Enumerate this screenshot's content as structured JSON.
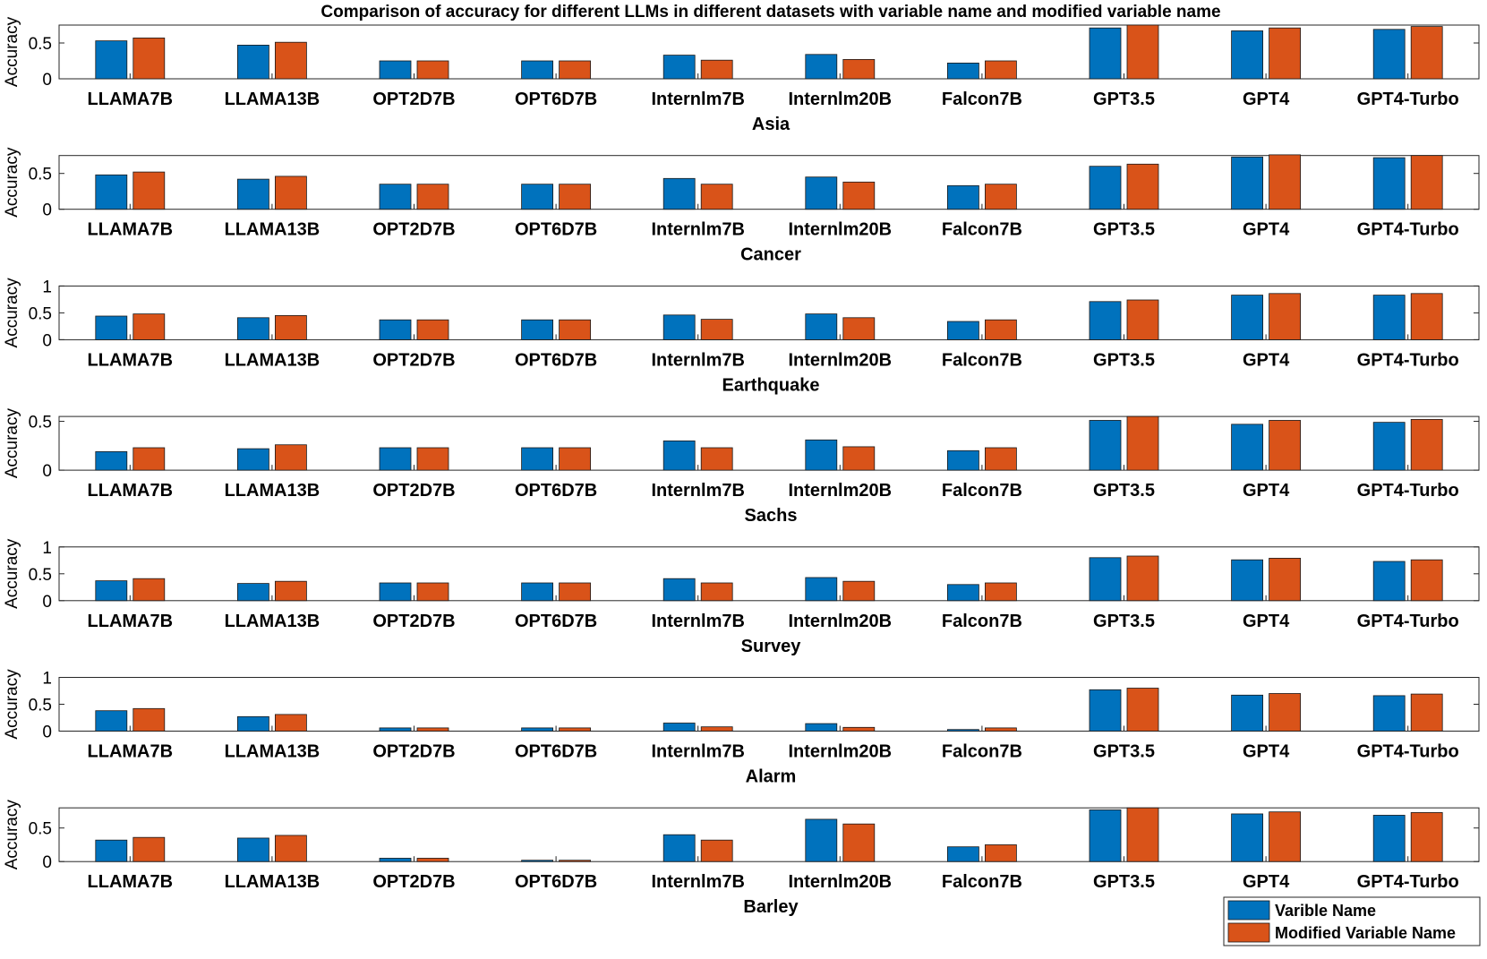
{
  "chart_data": {
    "type": "bar",
    "title": "Comparison of accuracy for different LLMs in different datasets with variable name and modified variable name",
    "ylabel": "Accuracy",
    "categories": [
      "LLAMA7B",
      "LLAMA13B",
      "OPT2D7B",
      "OPT6D7B",
      "Internlm7B",
      "Internlm20B",
      "Falcon7B",
      "GPT3.5",
      "GPT4",
      "GPT4-Turbo"
    ],
    "legend": {
      "placement": "bottom-right",
      "entries": [
        "Varible Name",
        "Modified Variable Name"
      ]
    },
    "colors": {
      "series1": "#0072BD",
      "series2": "#D95319",
      "axis": "#262626",
      "text": "#000000"
    },
    "panels": [
      {
        "xlabel": "Asia",
        "ylim": [
          0,
          0.75
        ],
        "yticks": [
          0,
          0.5
        ],
        "ytick_labels": [
          "0",
          "0.5"
        ],
        "series": [
          {
            "name": "Varible Name",
            "values": [
              0.53,
              0.47,
              0.25,
              0.25,
              0.33,
              0.34,
              0.22,
              0.71,
              0.67,
              0.69
            ]
          },
          {
            "name": "Modified Variable Name",
            "values": [
              0.57,
              0.51,
              0.25,
              0.25,
              0.26,
              0.27,
              0.25,
              0.75,
              0.71,
              0.73
            ]
          }
        ]
      },
      {
        "xlabel": "Cancer",
        "ylim": [
          0,
          0.75
        ],
        "yticks": [
          0,
          0.5
        ],
        "ytick_labels": [
          "0",
          "0.5"
        ],
        "series": [
          {
            "name": "Varible Name",
            "values": [
              0.48,
              0.42,
              0.35,
              0.35,
              0.43,
              0.45,
              0.33,
              0.6,
              0.73,
              0.72
            ]
          },
          {
            "name": "Modified Variable Name",
            "values": [
              0.52,
              0.46,
              0.35,
              0.35,
              0.35,
              0.38,
              0.35,
              0.63,
              0.76,
              0.75
            ]
          }
        ]
      },
      {
        "xlabel": "Earthquake",
        "ylim": [
          0,
          1
        ],
        "yticks": [
          0,
          0.5,
          1
        ],
        "ytick_labels": [
          "0",
          "0.5",
          "1"
        ],
        "series": [
          {
            "name": "Varible Name",
            "values": [
              0.44,
              0.41,
              0.37,
              0.37,
              0.46,
              0.48,
              0.34,
              0.71,
              0.83,
              0.83
            ]
          },
          {
            "name": "Modified Variable Name",
            "values": [
              0.48,
              0.45,
              0.37,
              0.37,
              0.38,
              0.41,
              0.37,
              0.74,
              0.86,
              0.86
            ]
          }
        ]
      },
      {
        "xlabel": "Sachs",
        "ylim": [
          0,
          0.55
        ],
        "yticks": [
          0,
          0.5
        ],
        "ytick_labels": [
          "0",
          "0.5"
        ],
        "series": [
          {
            "name": "Varible Name",
            "values": [
              0.19,
              0.22,
              0.23,
              0.23,
              0.3,
              0.31,
              0.2,
              0.51,
              0.47,
              0.49
            ]
          },
          {
            "name": "Modified Variable Name",
            "values": [
              0.23,
              0.26,
              0.23,
              0.23,
              0.23,
              0.24,
              0.23,
              0.55,
              0.51,
              0.52
            ]
          }
        ]
      },
      {
        "xlabel": "Survey",
        "ylim": [
          0,
          1
        ],
        "yticks": [
          0,
          0.5,
          1
        ],
        "ytick_labels": [
          "0",
          "0.5",
          "1"
        ],
        "series": [
          {
            "name": "Varible Name",
            "values": [
              0.37,
              0.32,
              0.33,
              0.33,
              0.41,
              0.43,
              0.3,
              0.8,
              0.76,
              0.73
            ]
          },
          {
            "name": "Modified Variable Name",
            "values": [
              0.41,
              0.36,
              0.33,
              0.33,
              0.33,
              0.36,
              0.33,
              0.83,
              0.79,
              0.76
            ]
          }
        ]
      },
      {
        "xlabel": "Alarm",
        "ylim": [
          0,
          1
        ],
        "yticks": [
          0,
          0.5,
          1
        ],
        "ytick_labels": [
          "0",
          "0.5",
          "1"
        ],
        "series": [
          {
            "name": "Varible Name",
            "values": [
              0.38,
              0.27,
              0.06,
              0.06,
              0.15,
              0.14,
              0.03,
              0.77,
              0.67,
              0.66
            ]
          },
          {
            "name": "Modified Variable Name",
            "values": [
              0.42,
              0.31,
              0.06,
              0.06,
              0.08,
              0.07,
              0.06,
              0.8,
              0.7,
              0.69
            ]
          }
        ]
      },
      {
        "xlabel": "Barley",
        "ylim": [
          0,
          0.8
        ],
        "yticks": [
          0,
          0.5
        ],
        "ytick_labels": [
          "0",
          "0.5"
        ],
        "series": [
          {
            "name": "Varible Name",
            "values": [
              0.32,
              0.35,
              0.05,
              0.02,
              0.4,
              0.63,
              0.22,
              0.77,
              0.71,
              0.69
            ]
          },
          {
            "name": "Modified Variable Name",
            "values": [
              0.36,
              0.39,
              0.05,
              0.02,
              0.32,
              0.56,
              0.25,
              0.8,
              0.74,
              0.73
            ]
          }
        ]
      }
    ]
  }
}
